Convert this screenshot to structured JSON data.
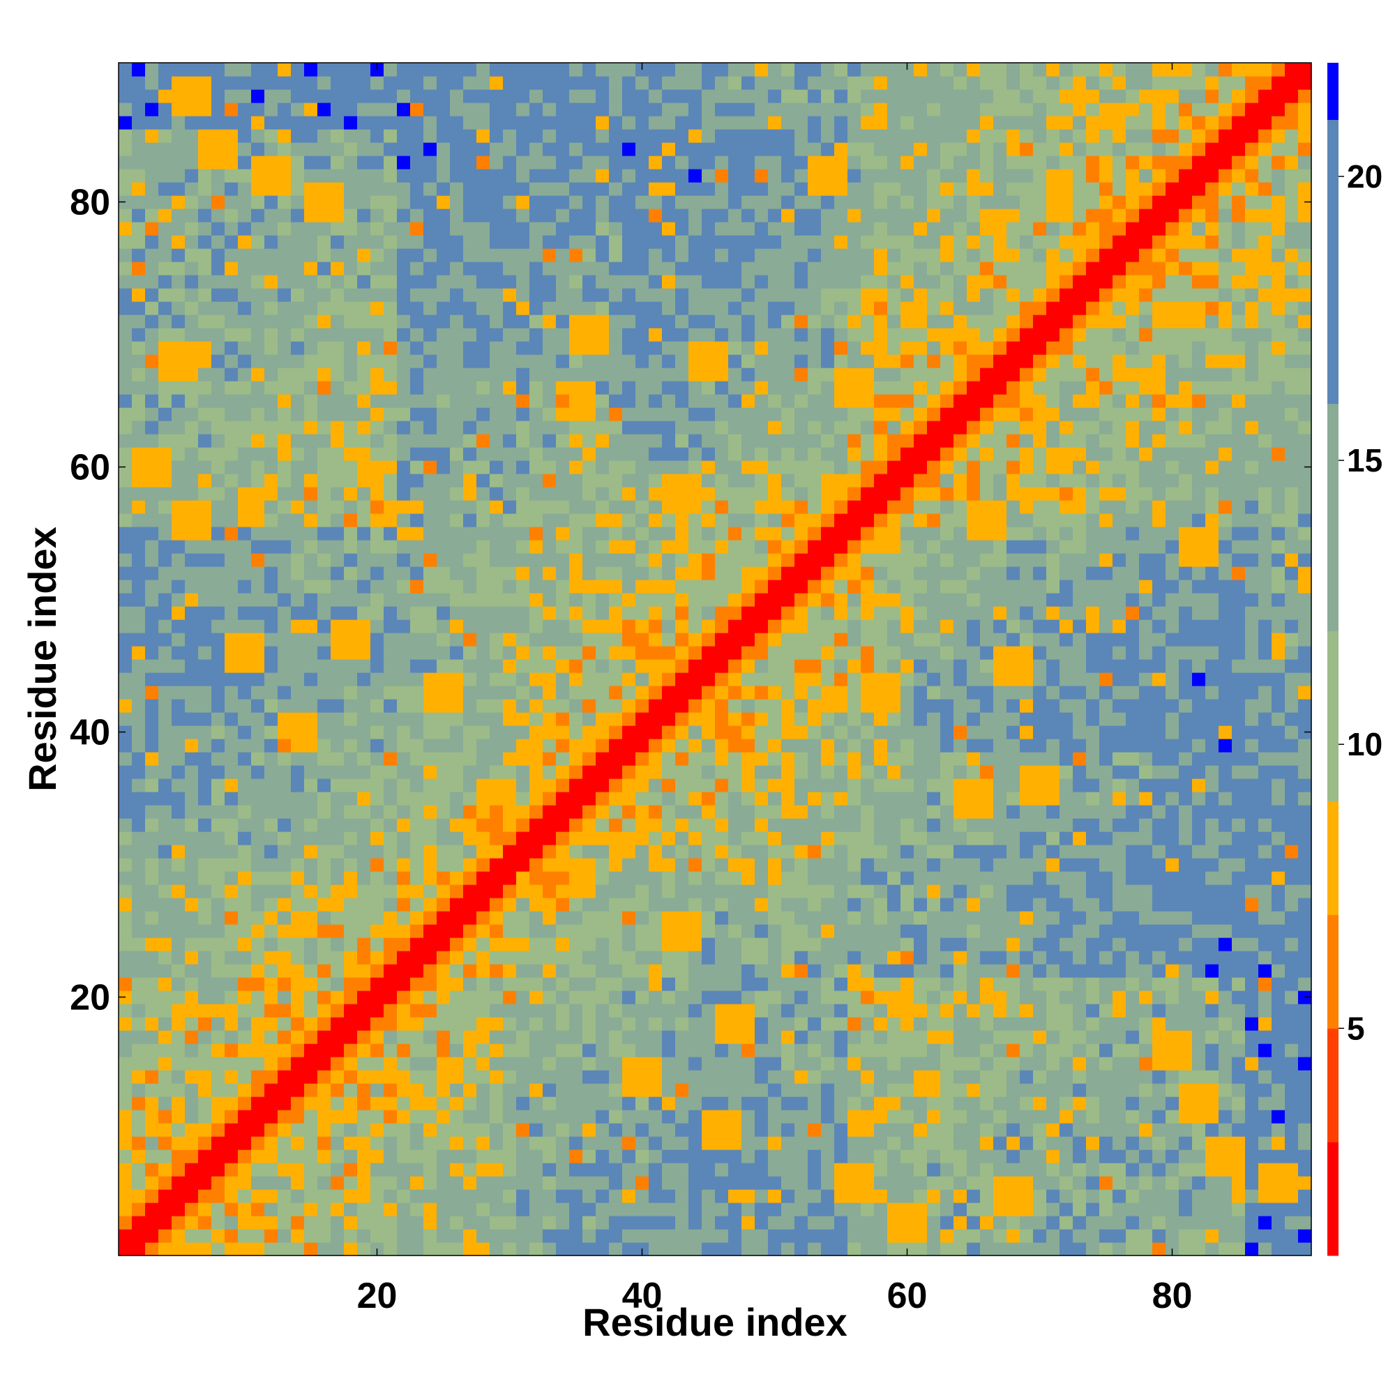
{
  "chart_data": {
    "type": "heatmap",
    "title": "",
    "xlabel": "Residue index",
    "ylabel": "Residue index",
    "n": 90,
    "xlim": [
      0.5,
      90.5
    ],
    "ylim": [
      0.5,
      90.5
    ],
    "x_ticks": [
      20,
      40,
      60,
      80
    ],
    "y_ticks": [
      20,
      40,
      60,
      80
    ],
    "colorbar": {
      "ticks": [
        5,
        10,
        15,
        20
      ],
      "range": [
        1,
        21
      ],
      "colors": [
        "#ff0000",
        "#ff4000",
        "#ff8000",
        "#ffb000",
        "#9cbb88",
        "#8aab96",
        "#5b86b8",
        "#0000ff"
      ],
      "boundaries": [
        1,
        3,
        5,
        7,
        9,
        12,
        16,
        21,
        22
      ]
    },
    "matrix_description": "symmetric residue distance map; red along the diagonal, blue for distant residue pairs",
    "contact_clusters": [
      {
        "i": 28,
        "j": 33,
        "value": 6.5
      },
      {
        "i": 29,
        "j": 35,
        "value": 7
      },
      {
        "i": 40,
        "j": 47,
        "value": 6
      },
      {
        "i": 56,
        "j": 66,
        "value": 7
      },
      {
        "i": 45,
        "j": 68,
        "value": 7
      },
      {
        "i": 5,
        "j": 68,
        "value": 7
      },
      {
        "i": 8,
        "j": 84,
        "value": 7.5
      },
      {
        "i": 12,
        "j": 82,
        "value": 7
      },
      {
        "i": 16,
        "j": 80,
        "value": 7.5
      },
      {
        "i": 3,
        "j": 60,
        "value": 7
      },
      {
        "i": 6,
        "j": 88,
        "value": 7
      },
      {
        "i": 10,
        "j": 46,
        "value": 7.5
      },
      {
        "i": 14,
        "j": 40,
        "value": 7.5
      },
      {
        "i": 18,
        "j": 47,
        "value": 7.5
      },
      {
        "i": 25,
        "j": 43,
        "value": 7
      },
      {
        "i": 35,
        "j": 65,
        "value": 7
      },
      {
        "i": 36,
        "j": 70,
        "value": 7.5
      },
      {
        "i": 43,
        "j": 58,
        "value": 7.5
      },
      {
        "i": 54,
        "j": 82,
        "value": 7.5
      },
      {
        "i": 6,
        "j": 56,
        "value": 7.5
      }
    ]
  }
}
